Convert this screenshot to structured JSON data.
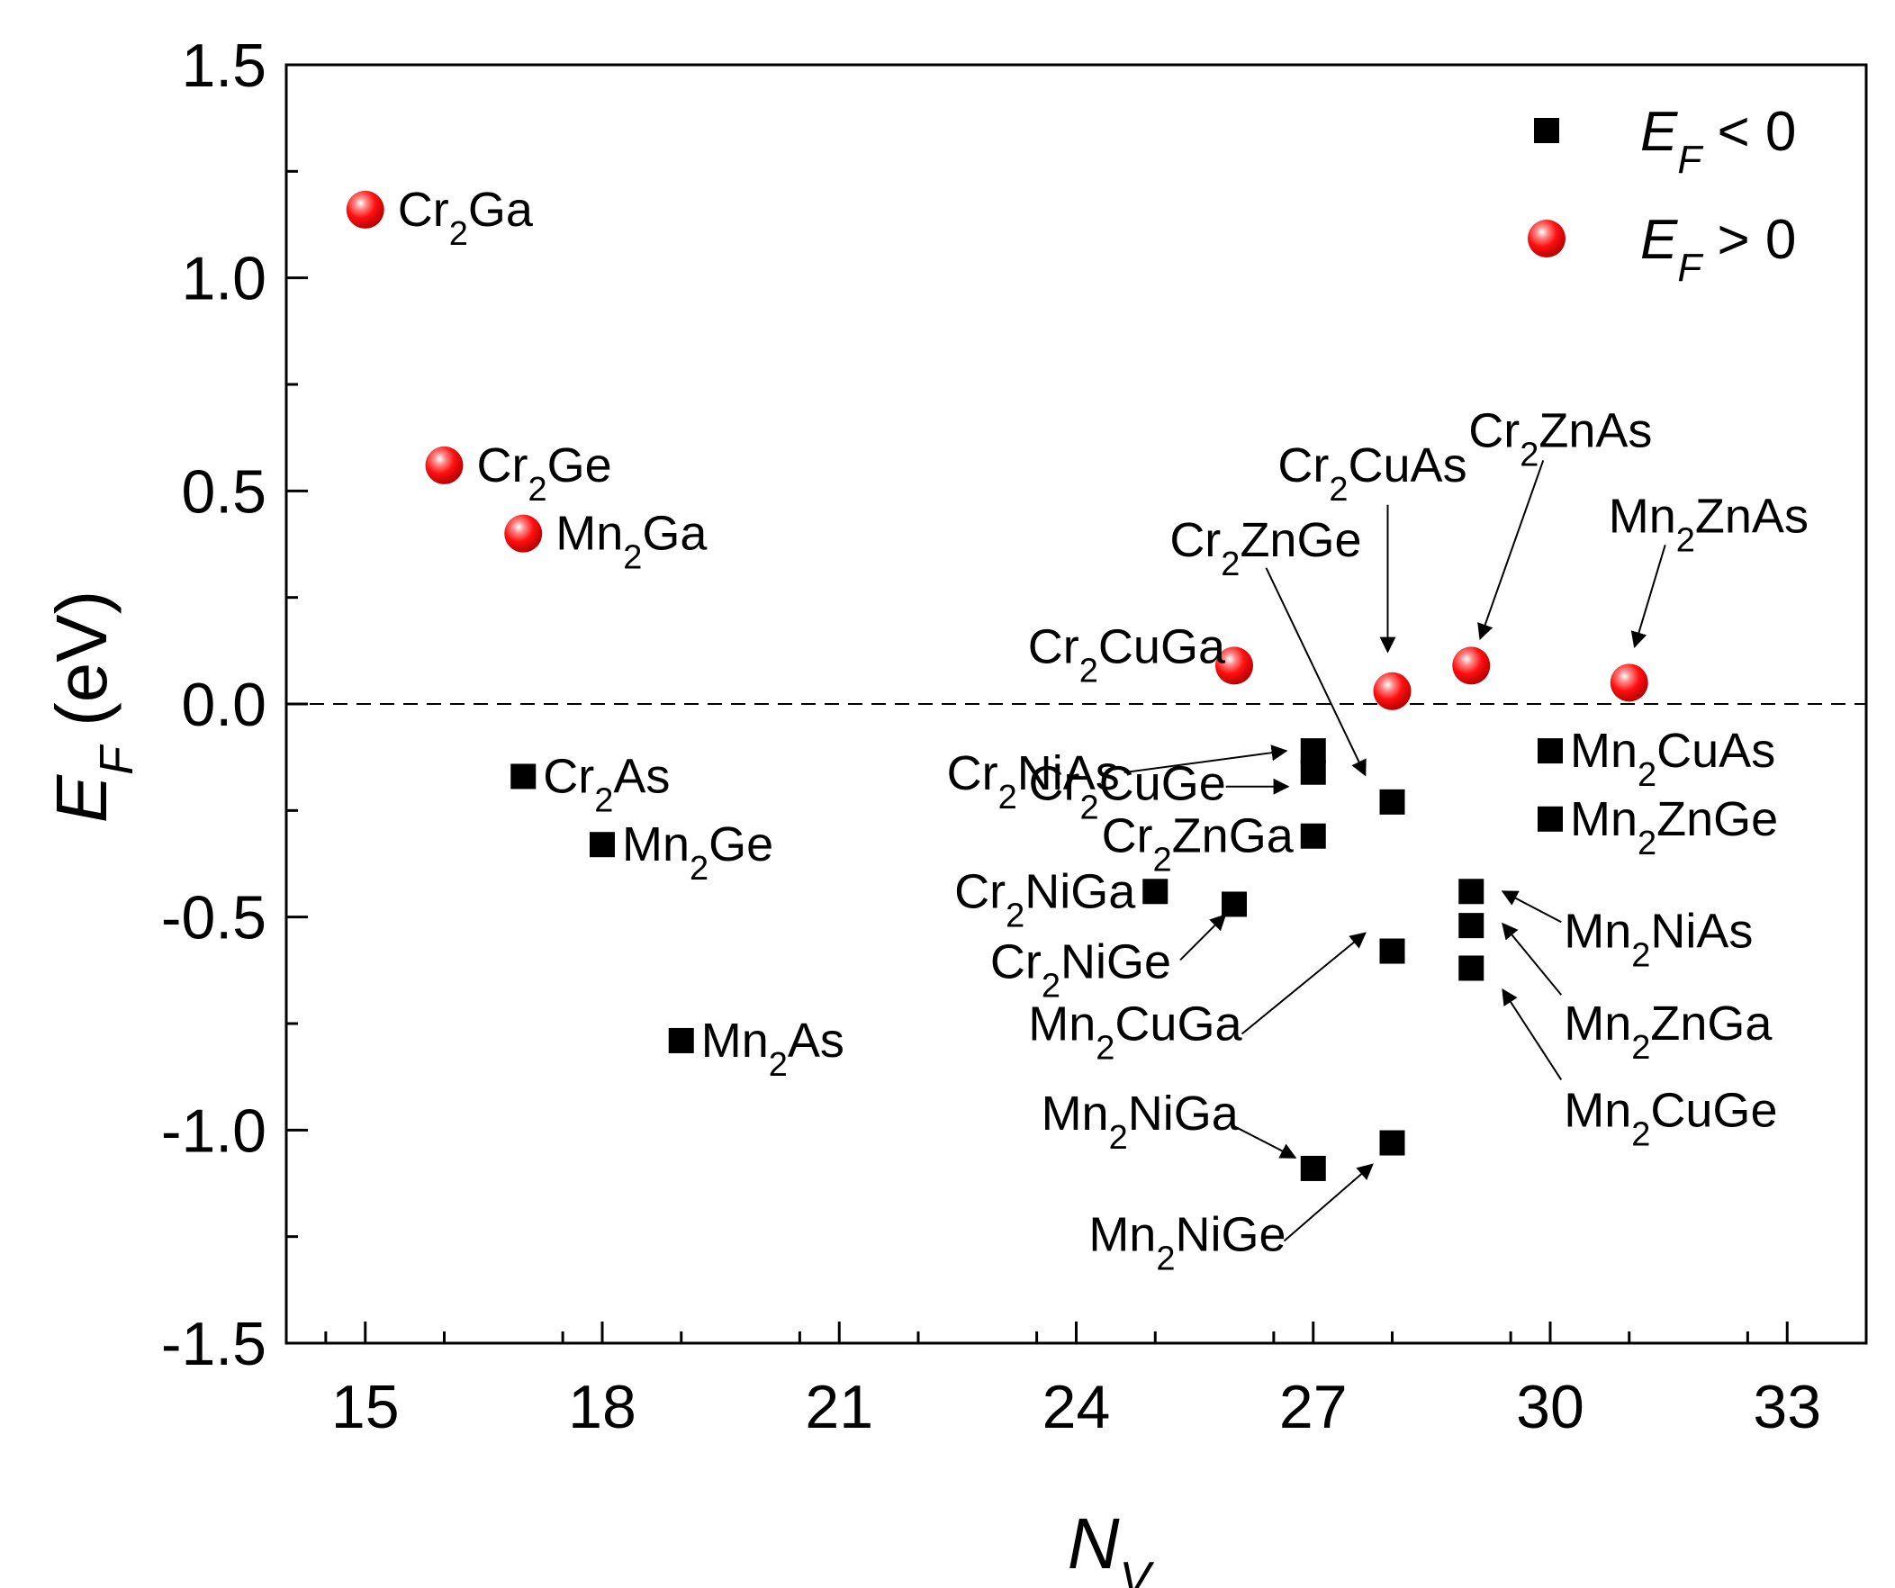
{
  "chart_data": {
    "type": "scatter",
    "xlabel": {
      "main": "N",
      "sub": "V"
    },
    "ylabel": {
      "main": "E",
      "sub": "F",
      "rest": " (eV)"
    },
    "xlim": [
      14,
      34
    ],
    "ylim": [
      -1.5,
      1.5
    ],
    "xticks": [
      15,
      18,
      21,
      24,
      27,
      30,
      33
    ],
    "xtick_labels": [
      "15",
      "18",
      "21",
      "24",
      "27",
      "30",
      "33"
    ],
    "yticks": [
      -1.5,
      -1.0,
      -0.5,
      0.0,
      0.5,
      1.0,
      1.5
    ],
    "ytick_labels": [
      "-1.5",
      "-1.0",
      "-0.5",
      "0.0",
      "0.5",
      "1.0",
      "1.5"
    ],
    "reference_line": {
      "y": 0,
      "style": "dashed"
    },
    "legend": {
      "position": "top-right",
      "entries": [
        {
          "series": "neg",
          "main": "E",
          "sub": "F",
          "rest": " < 0"
        },
        {
          "series": "pos",
          "main": "E",
          "sub": "F",
          "rest": " > 0"
        }
      ]
    },
    "series": [
      {
        "name": "E_F < 0",
        "key": "neg",
        "marker": "square",
        "color": "#000000",
        "points": [
          {
            "x": 17,
            "y": -0.17,
            "label": [
              "Cr",
              "2",
              "As"
            ]
          },
          {
            "x": 18,
            "y": -0.33,
            "label": [
              "Mn",
              "2",
              "Ge"
            ]
          },
          {
            "x": 19,
            "y": -0.79,
            "label": [
              "Mn",
              "2",
              "As"
            ]
          },
          {
            "x": 25,
            "y": -0.44,
            "label": [
              "Cr",
              "2",
              "NiGa"
            ]
          },
          {
            "x": 26,
            "y": -0.47,
            "label": [
              "Cr",
              "2",
              "NiGe"
            ]
          },
          {
            "x": 27,
            "y": -0.11,
            "label": [
              "Cr",
              "2",
              "NiAs"
            ]
          },
          {
            "x": 27,
            "y": -0.16,
            "label": [
              "Cr",
              "2",
              "CuGe"
            ]
          },
          {
            "x": 27,
            "y": -0.31,
            "label": [
              "Cr",
              "2",
              "ZnGa"
            ]
          },
          {
            "x": 27,
            "y": -1.09,
            "label": [
              "Mn",
              "2",
              "NiGa"
            ]
          },
          {
            "x": 28,
            "y": -0.23,
            "label": [
              "Cr",
              "2",
              "ZnGe"
            ]
          },
          {
            "x": 28,
            "y": -0.58,
            "label": [
              "Mn",
              "2",
              "CuGa"
            ]
          },
          {
            "x": 28,
            "y": -1.03,
            "label": [
              "Mn",
              "2",
              "NiGe"
            ]
          },
          {
            "x": 29,
            "y": -0.44,
            "label": [
              "Mn",
              "2",
              "NiAs"
            ]
          },
          {
            "x": 29,
            "y": -0.52,
            "label": [
              "Mn",
              "2",
              "ZnGa"
            ]
          },
          {
            "x": 29,
            "y": -0.62,
            "label": [
              "Mn",
              "2",
              "CuGe"
            ]
          },
          {
            "x": 30,
            "y": -0.11,
            "label": [
              "Mn",
              "2",
              "CuAs"
            ]
          },
          {
            "x": 30,
            "y": -0.27,
            "label": [
              "Mn",
              "2",
              "ZnGe"
            ]
          }
        ]
      },
      {
        "name": "E_F > 0",
        "key": "pos",
        "marker": "sphere",
        "color": "#ff1a1a",
        "points": [
          {
            "x": 15,
            "y": 1.16,
            "label": [
              "Cr",
              "2",
              "Ga"
            ]
          },
          {
            "x": 16,
            "y": 0.56,
            "label": [
              "Cr",
              "2",
              "Ge"
            ]
          },
          {
            "x": 17,
            "y": 0.4,
            "label": [
              "Mn",
              "2",
              "Ga"
            ]
          },
          {
            "x": 26,
            "y": 0.09,
            "label": [
              "Cr",
              "2",
              "CuGa"
            ]
          },
          {
            "x": 28,
            "y": 0.03,
            "label": [
              "Cr",
              "2",
              "CuAs"
            ]
          },
          {
            "x": 29,
            "y": 0.09,
            "label": [
              "Cr",
              "2",
              "ZnAs"
            ]
          },
          {
            "x": 31,
            "y": 0.05,
            "label": [
              "Mn",
              "2",
              "ZnAs"
            ]
          }
        ]
      }
    ]
  }
}
